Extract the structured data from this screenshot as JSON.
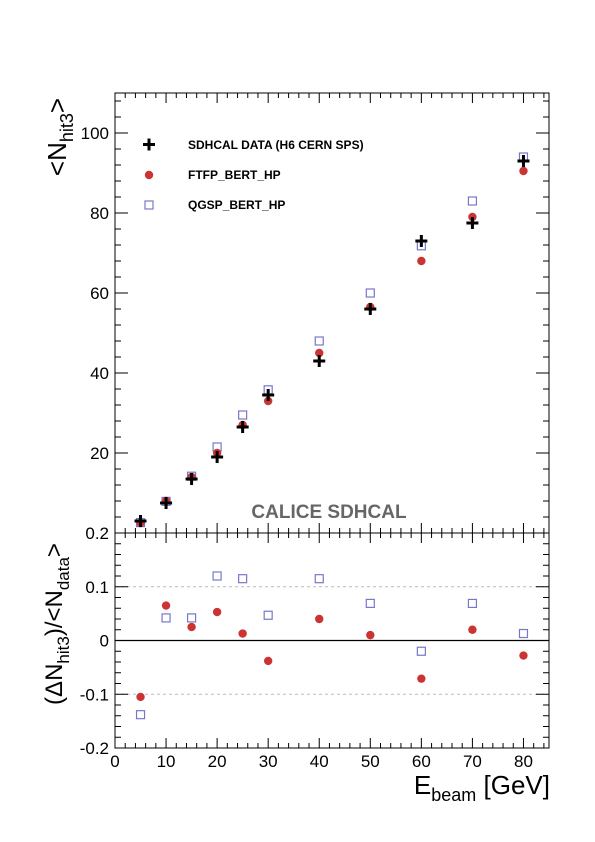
{
  "chart_data": [
    {
      "type": "scatter",
      "title": "",
      "xlabel": "E_beam [GeV]",
      "ylabel": "<N_hit3>",
      "xlim": [
        0,
        85
      ],
      "ylim": [
        0,
        110
      ],
      "yticks": [
        20,
        40,
        60,
        80,
        100
      ],
      "grid": false,
      "legend_position": "top-left",
      "annotation": "CALICE SDHCAL",
      "series": [
        {
          "name": "SDHCAL DATA (H6 CERN SPS)",
          "marker": "cross",
          "color": "#000000",
          "points": [
            [
              5,
              3.0
            ],
            [
              10,
              7.5
            ],
            [
              15,
              13.5
            ],
            [
              20,
              19.0
            ],
            [
              25,
              26.5
            ],
            [
              30,
              34.5
            ],
            [
              40,
              43.0
            ],
            [
              50,
              56.0
            ],
            [
              60,
              73.0
            ],
            [
              70,
              77.5
            ],
            [
              80,
              93.0
            ]
          ]
        },
        {
          "name": "FTFP_BERT_HP",
          "marker": "circle",
          "color": "#cc3333",
          "points": [
            [
              5,
              2.5
            ],
            [
              10,
              8.0
            ],
            [
              15,
              14.0
            ],
            [
              20,
              20.0
            ],
            [
              25,
              27.0
            ],
            [
              30,
              33.0
            ],
            [
              40,
              45.0
            ],
            [
              50,
              56.5
            ],
            [
              60,
              68.0
            ],
            [
              70,
              79.0
            ],
            [
              80,
              90.5
            ]
          ]
        },
        {
          "name": "QGSP_BERT_HP",
          "marker": "open-square",
          "color": "#7777cc",
          "points": [
            [
              5,
              2.6
            ],
            [
              10,
              7.9
            ],
            [
              15,
              14.2
            ],
            [
              20,
              21.5
            ],
            [
              25,
              29.5
            ],
            [
              30,
              35.8
            ],
            [
              40,
              48.0
            ],
            [
              50,
              60.0
            ],
            [
              60,
              71.8
            ],
            [
              70,
              83.0
            ],
            [
              80,
              94.0
            ]
          ]
        }
      ]
    },
    {
      "type": "scatter",
      "title": "",
      "xlabel": "E_beam [GeV]",
      "ylabel": "(ΔN_hit3)/<N_data>",
      "xlim": [
        0,
        85
      ],
      "ylim": [
        -0.2,
        0.2
      ],
      "yticks": [
        -0.2,
        -0.1,
        0,
        0.1,
        0.2
      ],
      "xticks": [
        0,
        10,
        20,
        30,
        40,
        50,
        60,
        70,
        80
      ],
      "grid": "dashed at ±0.1",
      "reference_line": 0,
      "series": [
        {
          "name": "FTFP_BERT_HP",
          "marker": "circle",
          "color": "#cc3333",
          "points": [
            [
              5,
              -0.105
            ],
            [
              10,
              0.065
            ],
            [
              15,
              0.025
            ],
            [
              20,
              0.053
            ],
            [
              25,
              0.013
            ],
            [
              30,
              -0.038
            ],
            [
              40,
              0.04
            ],
            [
              50,
              0.01
            ],
            [
              60,
              -0.071
            ],
            [
              70,
              0.02
            ],
            [
              80,
              -0.028
            ]
          ]
        },
        {
          "name": "QGSP_BERT_HP",
          "marker": "open-square",
          "color": "#7777cc",
          "points": [
            [
              5,
              -0.138
            ],
            [
              10,
              0.042
            ],
            [
              15,
              0.042
            ],
            [
              20,
              0.12
            ],
            [
              25,
              0.115
            ],
            [
              30,
              0.047
            ],
            [
              40,
              0.115
            ],
            [
              50,
              0.069
            ],
            [
              60,
              -0.02
            ],
            [
              70,
              0.069
            ],
            [
              80,
              0.013
            ]
          ]
        }
      ]
    }
  ],
  "legend": {
    "items": [
      "SDHCAL DATA (H6 CERN SPS)",
      "FTFP_BERT_HP",
      "QGSP_BERT_HP"
    ]
  },
  "labels": {
    "annotation": "CALICE SDHCAL",
    "top_ylabel_main": "<N",
    "top_ylabel_sub": "hit3",
    "top_ylabel_end": ">",
    "bot_ylabel_a": "(ΔN",
    "bot_ylabel_b": "hit3",
    "bot_ylabel_c": ")/<N",
    "bot_ylabel_d": "data",
    "bot_ylabel_e": ">",
    "xlabel_main": "E",
    "xlabel_sub": "beam",
    "xlabel_end": " [GeV]"
  }
}
